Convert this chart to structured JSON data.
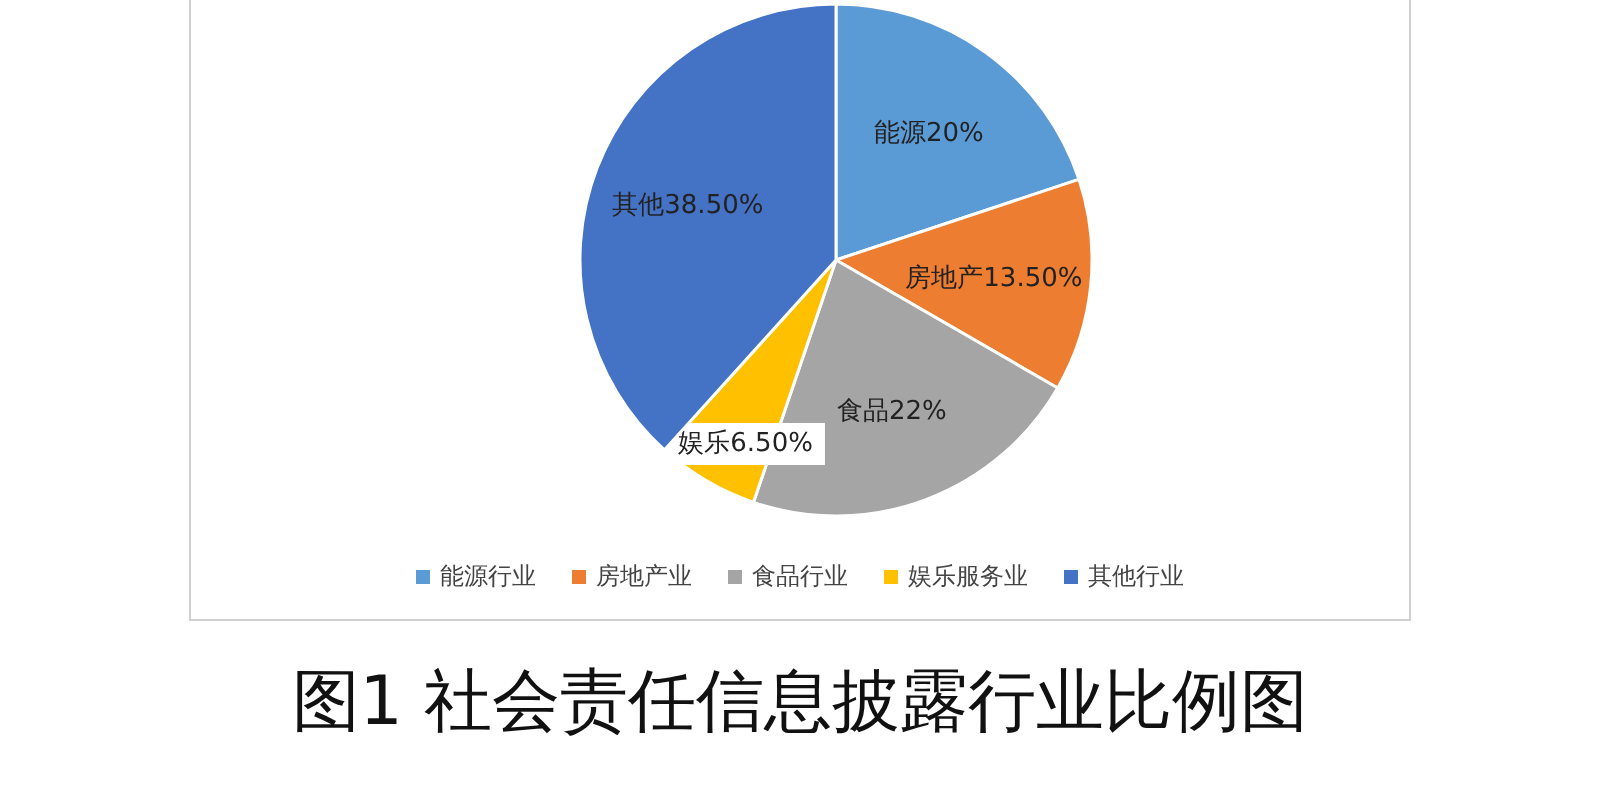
{
  "chart_data": {
    "type": "pie",
    "title": "图1 社会责任信息披露行业比例图",
    "categories": [
      "能源行业",
      "房地产业",
      "食品行业",
      "娱乐服务业",
      "其他行业"
    ],
    "values": [
      20,
      13.5,
      22,
      6.5,
      38.5
    ],
    "value_labels": [
      "能源20%",
      "房地产13.50%",
      "食品22%",
      "娱乐6.50%",
      "其他38.50%"
    ],
    "colors": [
      "#5b9bd5",
      "#ed7d31",
      "#a5a5a5",
      "#ffc000",
      "#4472c4"
    ],
    "legend": "bottom"
  }
}
